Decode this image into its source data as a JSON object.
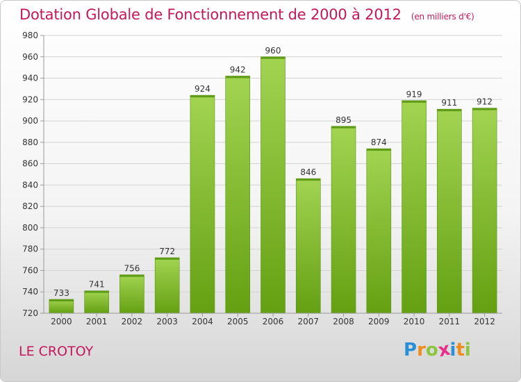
{
  "header": {
    "title": "Dotation Globale de Fonctionnement de 2000 à 2012",
    "subtitle": "(en milliers d'€)"
  },
  "footer": {
    "city": "LE CROTOY",
    "logo": {
      "letters": [
        "P",
        "r",
        "o",
        "x",
        "i",
        "t",
        "i"
      ],
      "colors": [
        "#2a8fd6",
        "#f08c1c",
        "#8cc63f",
        "#e8308a",
        "#2a8fd6",
        "#f08c1c",
        "#8cc63f"
      ]
    }
  },
  "chart_data": {
    "type": "bar",
    "title": "Dotation Globale de Fonctionnement de 2000 à 2012",
    "subtitle": "(en milliers d'€)",
    "categories": [
      "2000",
      "2001",
      "2002",
      "2003",
      "2004",
      "2005",
      "2006",
      "2007",
      "2008",
      "2009",
      "2010",
      "2011",
      "2012"
    ],
    "values": [
      733,
      741,
      756,
      772,
      924,
      942,
      960,
      846,
      895,
      874,
      919,
      911,
      912
    ],
    "data_labels": [
      "733",
      "741",
      "756",
      "772",
      "924",
      "942",
      "960",
      "846",
      "895",
      "874",
      "919",
      "911",
      "912"
    ],
    "ylim": [
      720,
      980
    ],
    "yticks": [
      720,
      740,
      760,
      780,
      800,
      820,
      840,
      860,
      880,
      900,
      920,
      940,
      960,
      980
    ],
    "grid": true,
    "bar_color": "#7cc02c"
  }
}
